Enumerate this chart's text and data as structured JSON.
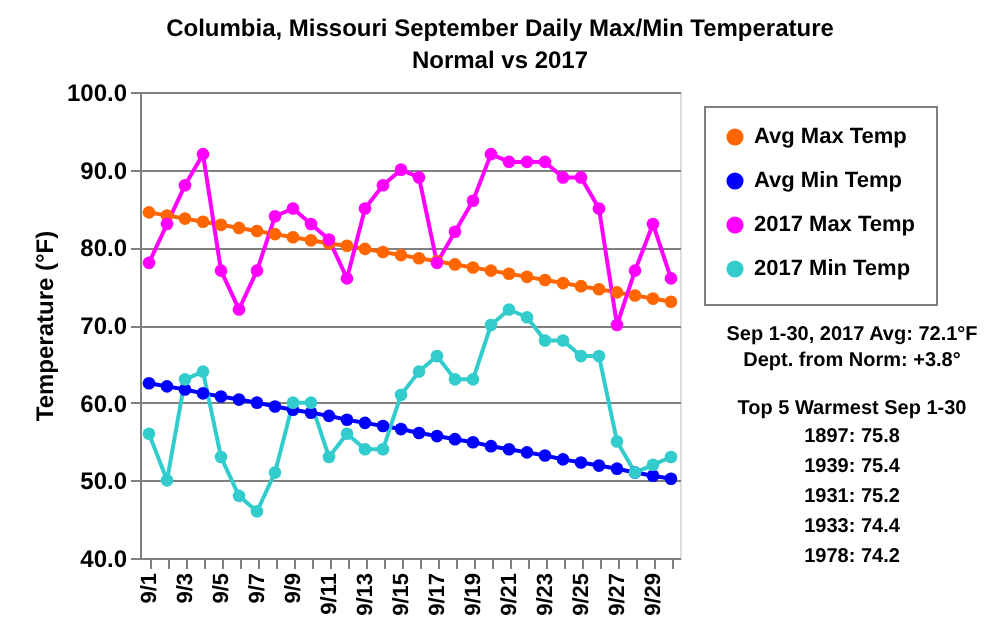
{
  "chart_data": {
    "type": "line",
    "title": "Columbia, Missouri September Daily Max/Min Temperature",
    "subtitle": "Normal vs 2017",
    "ylabel": "Temperature (°F)",
    "categories": [
      "9/1",
      null,
      "9/3",
      null,
      "9/5",
      null,
      "9/7",
      null,
      "9/9",
      null,
      "9/11",
      null,
      "9/13",
      null,
      "9/15",
      null,
      "9/17",
      null,
      "9/19",
      null,
      "9/21",
      null,
      "9/23",
      null,
      "9/25",
      null,
      "9/27",
      null,
      "9/29",
      null
    ],
    "series": [
      {
        "name": "Avg Max Temp",
        "color": "#ff6600",
        "values": [
          84.5,
          84.1,
          83.7,
          83.3,
          82.9,
          82.5,
          82.1,
          81.7,
          81.3,
          80.9,
          80.5,
          80.2,
          79.8,
          79.4,
          79.0,
          78.6,
          78.2,
          77.8,
          77.4,
          77.0,
          76.6,
          76.2,
          75.8,
          75.4,
          75.0,
          74.6,
          74.2,
          73.8,
          73.4,
          73.0
        ]
      },
      {
        "name": "Avg Min Temp",
        "color": "#0000ff",
        "values": [
          62.5,
          62.1,
          61.7,
          61.2,
          60.8,
          60.4,
          60.0,
          59.5,
          59.1,
          58.7,
          58.3,
          57.8,
          57.4,
          57.0,
          56.6,
          56.1,
          55.7,
          55.3,
          54.9,
          54.4,
          54.0,
          53.6,
          53.2,
          52.7,
          52.3,
          51.9,
          51.5,
          51.0,
          50.6,
          50.2
        ]
      },
      {
        "name": "2017 Max Temp",
        "color": "#ff00ff",
        "values": [
          78,
          83,
          88,
          92,
          77,
          72,
          77,
          84,
          85,
          83,
          81,
          76,
          85,
          88,
          90,
          89,
          78,
          82,
          86,
          92,
          91,
          91,
          91,
          89,
          89,
          85,
          70,
          77,
          83,
          76
        ]
      },
      {
        "name": "2017 Min Temp",
        "color": "#33cccc",
        "values": [
          56,
          50,
          63,
          64,
          53,
          48,
          46,
          51,
          60,
          60,
          53,
          56,
          54,
          54,
          61,
          64,
          66,
          63,
          63,
          70,
          72,
          71,
          68,
          68,
          66,
          66,
          55,
          51,
          52,
          53
        ]
      }
    ],
    "ylim": [
      40,
      100
    ],
    "yticks": [
      {
        "value": 40,
        "label": "40.0"
      },
      {
        "value": 50,
        "label": "50.0"
      },
      {
        "value": 60,
        "label": "60.0"
      },
      {
        "value": 70,
        "label": "70.0"
      },
      {
        "value": 80,
        "label": "80.0"
      },
      {
        "value": 90,
        "label": "90.0"
      },
      {
        "value": 100,
        "label": "100.0"
      }
    ],
    "grid": "y",
    "legend": "right",
    "marker": "circle",
    "line_style": "solid",
    "annotations": [
      "Sep 1-30, 2017 Avg: 72.1°F",
      "Dept. from Norm: +3.8°",
      "Top 5 Warmest Sep 1-30",
      "1897:  75.8",
      "1939:  75.4",
      "1931:  75.2",
      "1933:  74.4",
      "1978:  74.2"
    ]
  }
}
